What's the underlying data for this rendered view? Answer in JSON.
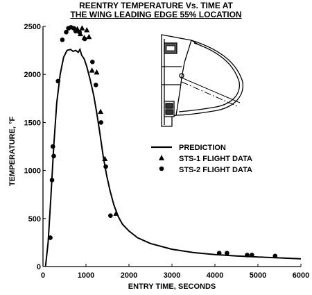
{
  "chart_data": {
    "type": "line",
    "title": [
      "REENTRY TEMPERATURE Vs. TIME AT",
      "THE WING LEADING EDGE 55% LOCATION"
    ],
    "xlabel": "ENTRY TIME, SECONDS",
    "ylabel": "TEMPERATURE, °F",
    "xlim": [
      0,
      6000
    ],
    "ylim": [
      0,
      2500
    ],
    "x_ticks": [
      0,
      1000,
      2000,
      3000,
      4000,
      5000,
      6000
    ],
    "y_ticks": [
      0,
      500,
      1000,
      1500,
      2000,
      2500
    ],
    "grid": false,
    "legend_position": "right-middle",
    "series": [
      {
        "name": "PREDICTION",
        "marker": "line",
        "x": [
          60,
          120,
          180,
          250,
          320,
          400,
          480,
          560,
          640,
          700,
          760,
          820,
          860,
          900,
          960,
          1020,
          1100,
          1180,
          1250,
          1320,
          1400,
          1480,
          1560,
          1650,
          1750,
          1850,
          2000,
          2200,
          2500,
          3000,
          3500,
          4000,
          4500,
          5000,
          5500,
          6000
        ],
        "values": [
          5,
          250,
          700,
          1250,
          1700,
          2000,
          2180,
          2250,
          2260,
          2240,
          2250,
          2230,
          2260,
          2200,
          2160,
          2080,
          1940,
          1780,
          1600,
          1400,
          1150,
          950,
          790,
          640,
          520,
          440,
          370,
          300,
          240,
          180,
          145,
          125,
          110,
          100,
          90,
          80
        ]
      },
      {
        "name": "STS-1 FLIGHT DATA",
        "marker": "triangle",
        "x": [
          800,
          870,
          910,
          960,
          1020,
          1070,
          1140,
          1250,
          1340,
          1440,
          1700
        ],
        "values": [
          2470,
          2420,
          2480,
          2380,
          2460,
          2390,
          2040,
          2020,
          1610,
          1120,
          550
        ]
      },
      {
        "name": "STS-2 FLIGHT DATA",
        "marker": "circle",
        "x": [
          170,
          210,
          230,
          250,
          350,
          450,
          540,
          590,
          650,
          720,
          760,
          850,
          970,
          1150,
          1230,
          1350,
          1460,
          1570,
          4100,
          4280,
          4750,
          4860,
          5400
        ],
        "values": [
          300,
          900,
          1250,
          1150,
          1930,
          2360,
          2440,
          2480,
          2490,
          2480,
          2450,
          2440,
          2370,
          2130,
          1890,
          1500,
          1040,
          530,
          140,
          140,
          120,
          120,
          110
        ]
      }
    ]
  }
}
